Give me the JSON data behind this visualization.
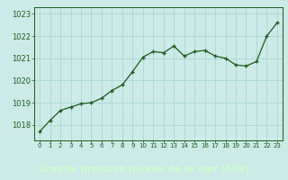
{
  "x": [
    0,
    1,
    2,
    3,
    4,
    5,
    6,
    7,
    8,
    9,
    10,
    11,
    12,
    13,
    14,
    15,
    16,
    17,
    18,
    19,
    20,
    21,
    22,
    23
  ],
  "y": [
    1017.7,
    1018.2,
    1018.65,
    1018.8,
    1018.95,
    1019.0,
    1019.2,
    1019.55,
    1019.8,
    1020.4,
    1021.05,
    1021.3,
    1021.25,
    1021.55,
    1021.1,
    1021.3,
    1021.35,
    1021.1,
    1021.0,
    1020.7,
    1020.65,
    1020.85,
    1022.0,
    1022.6
  ],
  "line_color": "#1a5c1a",
  "marker": "+",
  "marker_size": 3.5,
  "line_width": 0.9,
  "bg_color": "#cceae8",
  "grid_color": "#a8d8d4",
  "xlabel": "Graphe pression niveau de la mer (hPa)",
  "xlabel_color": "#1a5c1a",
  "xlabel_fontsize": 7.5,
  "xlabel_bold": true,
  "yticks": [
    1018,
    1019,
    1020,
    1021,
    1022,
    1023
  ],
  "ytick_fontsize": 6.0,
  "ylim": [
    1017.3,
    1023.3
  ],
  "xlim": [
    -0.5,
    23.5
  ],
  "tick_color": "#1a5c1a",
  "spine_color": "#1a5c1a",
  "xtick_fontsize": 5.0,
  "bottom_bar_color": "#2d6e2d",
  "bottom_bar_text_color": "#ccffcc",
  "xtick_labels": [
    "0",
    "1",
    "2",
    "3",
    "4",
    "5",
    "6",
    "7",
    "8",
    "9",
    "10",
    "11",
    "12",
    "13",
    "14",
    "15",
    "16",
    "17",
    "18",
    "19",
    "20",
    "21",
    "22",
    "23"
  ]
}
